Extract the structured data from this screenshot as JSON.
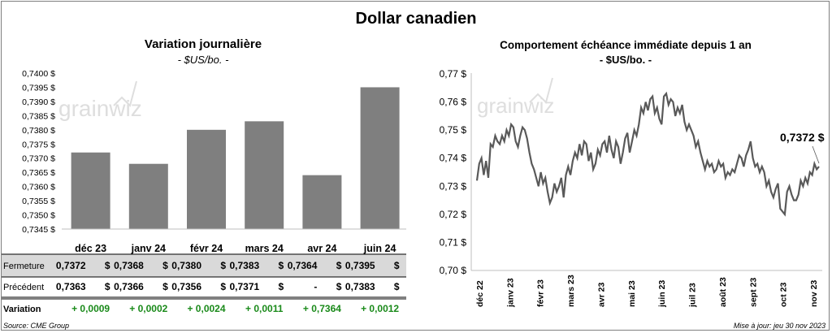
{
  "title": "Dollar canadien",
  "left": {
    "title": "Variation  journalière",
    "unit": "- $US/bo. -",
    "watermark": "grainwiz",
    "rows": {
      "fermeture": "Fermeture",
      "precedent": "Précédent",
      "variation": "Variation"
    },
    "precedent_values": [
      "0,7363",
      "0,7366",
      "0,7356",
      "0,7371",
      "-",
      "0,7383"
    ],
    "fermeture_values": [
      "0,7372",
      "0,7368",
      "0,7380",
      "0,7383",
      "0,7364",
      "0,7395"
    ],
    "variation_values": [
      "+ 0,0009",
      "+ 0,0002",
      "+ 0,0024",
      "+ 0,0011",
      "+ 0,7364",
      "+ 0,0012"
    ],
    "currency": "$",
    "colors": {
      "bar": "#7f7f7f",
      "header_row": "#d9d9d9",
      "positive": "#1a8a1a"
    }
  },
  "right": {
    "title": "Comportement échéance immédiate depuis 1 an",
    "unit": "- $US/bo. -",
    "watermark": "grainwiz",
    "last_label": "0,7372 $",
    "colors": {
      "line": "#595959"
    }
  },
  "source": "Source: CME Group",
  "updated": "Mise à jour: jeu 30 nov 2023",
  "chart_data": [
    {
      "type": "bar",
      "title": "Variation  journalière",
      "ylabel": "$US/bo.",
      "categories": [
        "déc 23",
        "janv 24",
        "févr 24",
        "mars 24",
        "avr 24",
        "juin 24"
      ],
      "values": [
        0.7372,
        0.7368,
        0.738,
        0.7383,
        0.7364,
        0.7395
      ],
      "ylim": [
        0.7345,
        0.74
      ],
      "yticks": [
        "0,7345 $",
        "0,7350 $",
        "0,7355 $",
        "0,7360 $",
        "0,7365 $",
        "0,7370 $",
        "0,7375 $",
        "0,7380 $",
        "0,7385 $",
        "0,7390 $",
        "0,7395 $",
        "0,7400 $"
      ],
      "grid": false
    },
    {
      "type": "line",
      "title": "Comportement échéance immédiate depuis 1 an",
      "ylabel": "$US/bo.",
      "ylim": [
        0.7,
        0.77
      ],
      "yticks": [
        "0,70 $",
        "0,71 $",
        "0,72 $",
        "0,73 $",
        "0,74 $",
        "0,75 $",
        "0,76 $",
        "0,77 $"
      ],
      "xticks": [
        "déc 22",
        "janv 23",
        "févr 23",
        "mars 23",
        "avr 23",
        "mai 23",
        "juin 23",
        "juil 23",
        "août 23",
        "sept 23",
        "oct 23",
        "nov 23"
      ],
      "grid": false,
      "series": [
        {
          "values": [
            0.732,
            0.738,
            0.74,
            0.734,
            0.739,
            0.733,
            0.745,
            0.744,
            0.748,
            0.746,
            0.745,
            0.748,
            0.746,
            0.75,
            0.748,
            0.752,
            0.751,
            0.746,
            0.744,
            0.748,
            0.751,
            0.75,
            0.747,
            0.742,
            0.738,
            0.736,
            0.733,
            0.73,
            0.735,
            0.731,
            0.733,
            0.728,
            0.724,
            0.726,
            0.731,
            0.728,
            0.73,
            0.733,
            0.726,
            0.734,
            0.737,
            0.734,
            0.739,
            0.742,
            0.74,
            0.745,
            0.741,
            0.746,
            0.745,
            0.739,
            0.742,
            0.736,
            0.738,
            0.743,
            0.741,
            0.745,
            0.746,
            0.742,
            0.748,
            0.743,
            0.74,
            0.746,
            0.744,
            0.738,
            0.742,
            0.747,
            0.749,
            0.742,
            0.746,
            0.75,
            0.748,
            0.752,
            0.758,
            0.756,
            0.76,
            0.757,
            0.761,
            0.762,
            0.756,
            0.758,
            0.754,
            0.752,
            0.762,
            0.763,
            0.759,
            0.761,
            0.76,
            0.755,
            0.758,
            0.756,
            0.759,
            0.753,
            0.75,
            0.752,
            0.75,
            0.748,
            0.744,
            0.746,
            0.742,
            0.739,
            0.736,
            0.739,
            0.737,
            0.738,
            0.735,
            0.736,
            0.739,
            0.737,
            0.738,
            0.733,
            0.735,
            0.734,
            0.736,
            0.735,
            0.738,
            0.741,
            0.74,
            0.737,
            0.741,
            0.743,
            0.746,
            0.74,
            0.737,
            0.738,
            0.735,
            0.737,
            0.735,
            0.73,
            0.732,
            0.728,
            0.726,
            0.729,
            0.731,
            0.722,
            0.721,
            0.72,
            0.728,
            0.73,
            0.727,
            0.725,
            0.725,
            0.727,
            0.732,
            0.73,
            0.733,
            0.731,
            0.735,
            0.734,
            0.738,
            0.736,
            0.737
          ]
        }
      ],
      "annotations": [
        "0,7372 $"
      ]
    }
  ]
}
